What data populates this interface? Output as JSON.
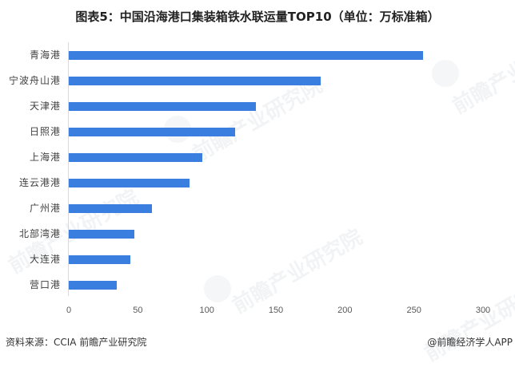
{
  "title": "图表5：中国沿海港口集装箱铁水联运量TOP10（单位：万标准箱）",
  "footer": {
    "source": "资料来源：CCIA  前瞻产业研究院",
    "credit": "@前瞻经济学人APP"
  },
  "watermark": "前瞻产业研究院",
  "colors": {
    "bar": "#3a7fe0",
    "axis": "#d9d9d9"
  },
  "chart_data": {
    "type": "bar",
    "orientation": "horizontal",
    "title": "图表5：中国沿海港口集装箱铁水联运量TOP10（单位：万标准箱）",
    "xlabel": "",
    "ylabel": "",
    "unit": "万标准箱",
    "categories": [
      "青海港",
      "宁波舟山港",
      "天津港",
      "日照港",
      "上海港",
      "连云港港",
      "广州港",
      "北部湾港",
      "大连港",
      "营口港"
    ],
    "values": [
      256.5,
      182.4,
      135.5,
      120.4,
      96.6,
      87.3,
      60.2,
      47.3,
      44.4,
      34.6
    ],
    "xlim": [
      0,
      300
    ],
    "xticks": [
      "0",
      "50",
      "100",
      "150",
      "200",
      "250",
      "300"
    ],
    "grid": false,
    "legend": null
  }
}
